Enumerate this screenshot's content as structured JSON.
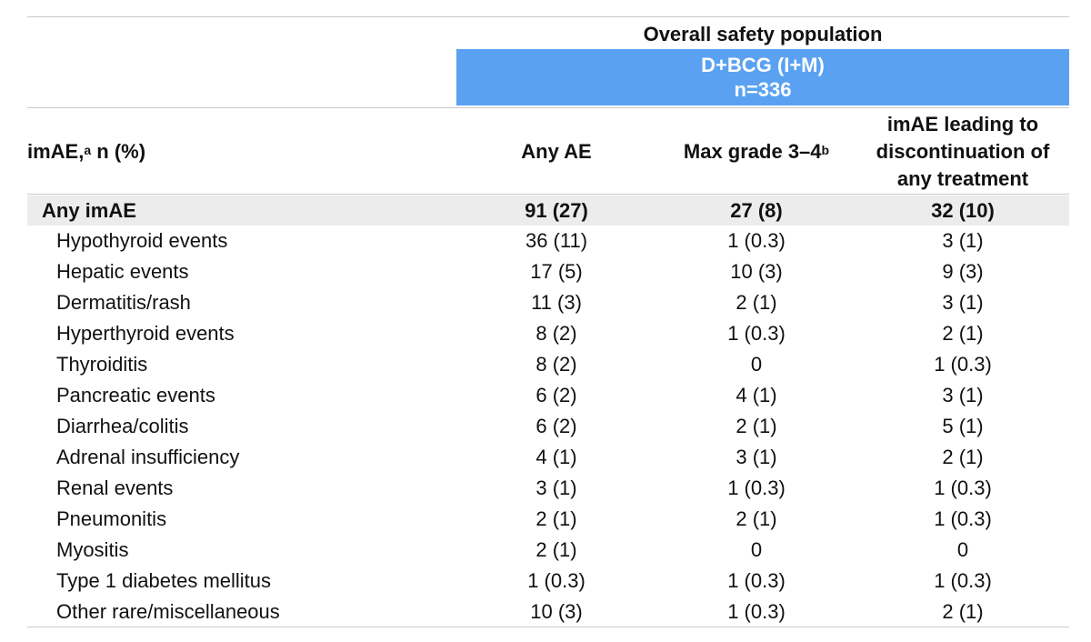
{
  "header": {
    "group_title": "Overall safety population",
    "arm_line1": "D+BCG (I+M)",
    "arm_line2": "n=336",
    "row_header_text": "imAE,",
    "row_header_sup": "a",
    "row_header_tail": " n (%)",
    "col_any_ae": "Any AE",
    "col_max_grade": "Max grade 3–4",
    "col_max_grade_sup": "b",
    "col_discontinuation_line1": "imAE leading to",
    "col_discontinuation_line2": "discontinuation of",
    "col_discontinuation_line3": "any treatment"
  },
  "total_row": {
    "label": "Any imAE",
    "any_ae": "91 (27)",
    "max_grade": "27 (8)",
    "discontinuation": "32 (10)"
  },
  "rows": [
    {
      "label": "Hypothyroid events",
      "any_ae": "36 (11)",
      "max_grade": "1 (0.3)",
      "discontinuation": "3 (1)"
    },
    {
      "label": "Hepatic events",
      "any_ae": "17 (5)",
      "max_grade": "10 (3)",
      "discontinuation": "9 (3)"
    },
    {
      "label": "Dermatitis/rash",
      "any_ae": "11 (3)",
      "max_grade": "2 (1)",
      "discontinuation": "3 (1)"
    },
    {
      "label": "Hyperthyroid events",
      "any_ae": "8 (2)",
      "max_grade": "1 (0.3)",
      "discontinuation": "2 (1)"
    },
    {
      "label": "Thyroiditis",
      "any_ae": "8 (2)",
      "max_grade": "0",
      "discontinuation": "1 (0.3)"
    },
    {
      "label": "Pancreatic events",
      "any_ae": "6 (2)",
      "max_grade": "4 (1)",
      "discontinuation": "3 (1)"
    },
    {
      "label": "Diarrhea/colitis",
      "any_ae": "6 (2)",
      "max_grade": "2 (1)",
      "discontinuation": "5 (1)"
    },
    {
      "label": "Adrenal insufficiency",
      "any_ae": "4 (1)",
      "max_grade": "3 (1)",
      "discontinuation": "2 (1)"
    },
    {
      "label": "Renal events",
      "any_ae": "3 (1)",
      "max_grade": "1 (0.3)",
      "discontinuation": "1 (0.3)"
    },
    {
      "label": "Pneumonitis",
      "any_ae": "2 (1)",
      "max_grade": "2 (1)",
      "discontinuation": "1 (0.3)"
    },
    {
      "label": "Myositis",
      "any_ae": "2 (1)",
      "max_grade": "0",
      "discontinuation": "0"
    },
    {
      "label": "Type 1 diabetes mellitus",
      "any_ae": "1 (0.3)",
      "max_grade": "1 (0.3)",
      "discontinuation": "1 (0.3)"
    },
    {
      "label": "Other rare/miscellaneous",
      "any_ae": "10 (3)",
      "max_grade": "1 (0.3)",
      "discontinuation": "2 (1)"
    }
  ],
  "colors": {
    "arm_band": "#5aa2f1",
    "total_row_bg": "#ececec",
    "rule": "#c9c9c9"
  }
}
